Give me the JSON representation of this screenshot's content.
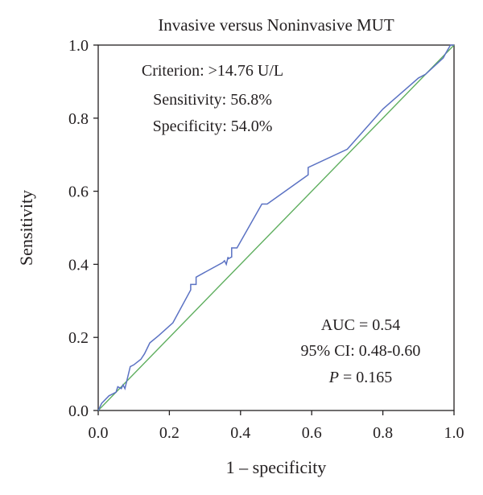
{
  "colors": {
    "roc_curve": "#5b72c3",
    "reference_line": "#5eae5e",
    "axis": "#231f20"
  },
  "chart_data": {
    "type": "line",
    "title": "Invasive versus Noninvasive MUT",
    "xlabel": "1 – specificity",
    "ylabel": "Sensitivity",
    "xlim": [
      0,
      1
    ],
    "ylim": [
      0,
      1
    ],
    "x_ticks": [
      0,
      0.2,
      0.4,
      0.6,
      0.8,
      1
    ],
    "y_ticks": [
      0,
      0.2,
      0.4,
      0.6,
      0.8,
      1
    ],
    "x_tick_labels": [
      "0.0",
      "0.2",
      "0.4",
      "0.6",
      "0.8",
      "1.0"
    ],
    "y_tick_labels": [
      "0.0",
      "0.2",
      "0.4",
      "0.6",
      "0.8",
      "1.0"
    ],
    "grid": false,
    "legend": "none",
    "series": [
      {
        "x": [
          0,
          0.01,
          0.03,
          0.04,
          0.05,
          0.055,
          0.065,
          0.07,
          0.075,
          0.09,
          0.1,
          0.12,
          0.13,
          0.145,
          0.17,
          0.21,
          0.26,
          0.26,
          0.275,
          0.275,
          0.35,
          0.355,
          0.36,
          0.365,
          0.365,
          0.375,
          0.375,
          0.39,
          0.46,
          0.475,
          0.59,
          0.59,
          0.7,
          0.8,
          0.9,
          0.92,
          0.97,
          0.975,
          0.99,
          1
        ],
        "y": [
          0,
          0.02,
          0.04,
          0.045,
          0.05,
          0.065,
          0.06,
          0.07,
          0.06,
          0.12,
          0.125,
          0.14,
          0.155,
          0.185,
          0.205,
          0.24,
          0.33,
          0.345,
          0.345,
          0.365,
          0.405,
          0.41,
          0.4,
          0.42,
          0.415,
          0.42,
          0.445,
          0.445,
          0.565,
          0.565,
          0.645,
          0.665,
          0.715,
          0.825,
          0.91,
          0.92,
          0.965,
          0.975,
          1.0,
          1.0
        ]
      },
      {
        "x": [
          0,
          1
        ],
        "y": [
          0,
          1
        ]
      }
    ],
    "annotations": {
      "criterion": "Criterion: >14.76 U/L",
      "sensitivity": "Sensitivity: 56.8%",
      "specificity": "Specificity: 54.0%",
      "auc": "AUC = 0.54",
      "ci": "95% CI: 0.48-0.60",
      "p_italic": "P",
      "p_value": " = 0.165"
    }
  }
}
